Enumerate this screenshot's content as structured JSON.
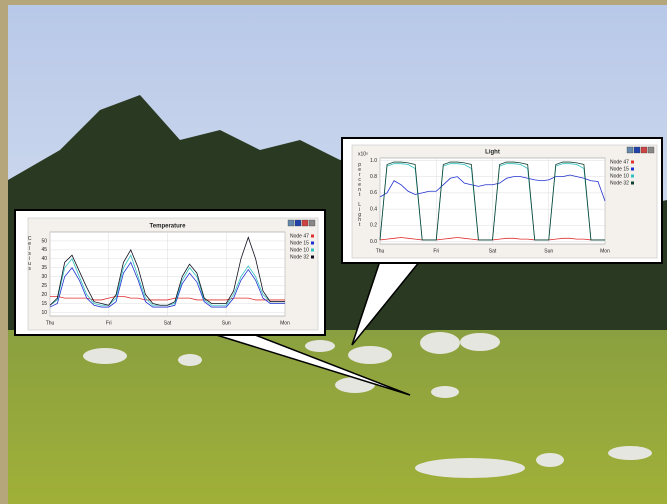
{
  "chart_data": [
    {
      "type": "line",
      "title": "Temperature",
      "y_label": "Celsius",
      "categories": [
        "Thu",
        null,
        null,
        null,
        null,
        null,
        null,
        null,
        "Fri",
        null,
        null,
        null,
        null,
        null,
        null,
        null,
        "Sat",
        null,
        null,
        null,
        null,
        null,
        null,
        null,
        "Sun",
        null,
        null,
        null,
        null,
        null,
        null,
        null,
        "Mon"
      ],
      "ylim": [
        8,
        55
      ],
      "yticks": [
        10,
        15,
        20,
        25,
        30,
        35,
        40,
        45,
        50
      ],
      "grid": true,
      "legend": "right",
      "series": [
        {
          "name": "Node 47",
          "color": "#e03030",
          "values": [
            19,
            19,
            18,
            18,
            18,
            18,
            17,
            17,
            18,
            19,
            19,
            18,
            18,
            17,
            17,
            17,
            17,
            18,
            18,
            18,
            17,
            17,
            17,
            17,
            17,
            18,
            18,
            18,
            17,
            17,
            17,
            17,
            17
          ]
        },
        {
          "name": "Node 15",
          "color": "#2030d0",
          "values": [
            13,
            15,
            30,
            35,
            28,
            18,
            14,
            13,
            13,
            16,
            32,
            38,
            28,
            16,
            13,
            13,
            13,
            14,
            26,
            32,
            27,
            16,
            13,
            13,
            13,
            18,
            28,
            34,
            28,
            18,
            15,
            15,
            15
          ]
        },
        {
          "name": "Node 10",
          "color": "#30c0c0",
          "values": [
            14,
            17,
            35,
            40,
            30,
            20,
            15,
            14,
            14,
            18,
            35,
            42,
            30,
            18,
            14,
            14,
            14,
            15,
            28,
            35,
            30,
            17,
            14,
            14,
            14,
            20,
            30,
            36,
            30,
            20,
            16,
            16,
            16
          ]
        },
        {
          "name": "Node 32",
          "color": "#101020",
          "values": [
            14,
            18,
            38,
            42,
            33,
            24,
            16,
            15,
            14,
            20,
            38,
            45,
            35,
            20,
            15,
            14,
            14,
            16,
            30,
            37,
            32,
            18,
            15,
            15,
            15,
            22,
            40,
            52,
            40,
            22,
            16,
            16,
            16
          ]
        }
      ]
    },
    {
      "type": "line",
      "title": "Light",
      "y_label": "percent Light",
      "axis_multiplier": "x10⁵",
      "categories": [
        "Thu",
        null,
        null,
        null,
        null,
        null,
        null,
        null,
        "Fri",
        null,
        null,
        null,
        null,
        null,
        null,
        null,
        "Sat",
        null,
        null,
        null,
        null,
        null,
        null,
        null,
        "Sun",
        null,
        null,
        null,
        null,
        null,
        null,
        null,
        "Mon"
      ],
      "ylim": [
        -0.03,
        1.03
      ],
      "yticks": [
        {
          "value": 0,
          "label": "0.0"
        },
        {
          "value": 0.2,
          "label": "0.2"
        },
        {
          "value": 0.4,
          "label": "0.4"
        },
        {
          "value": 0.6,
          "label": "0.6"
        },
        {
          "value": 0.8,
          "label": "0.8"
        },
        {
          "value": 1,
          "label": "1.0"
        }
      ],
      "grid": true,
      "legend": "right",
      "series": [
        {
          "name": "Node 47",
          "color": "#e03030",
          "values": [
            0.02,
            0.03,
            0.04,
            0.05,
            0.04,
            0.03,
            0.02,
            0.02,
            0.02,
            0.03,
            0.04,
            0.05,
            0.04,
            0.03,
            0.02,
            0.02,
            0.02,
            0.03,
            0.04,
            0.04,
            0.03,
            0.03,
            0.02,
            0.02,
            0.02,
            0.03,
            0.04,
            0.04,
            0.03,
            0.03,
            0.02,
            0.02,
            0.02
          ]
        },
        {
          "name": "Node 15",
          "color": "#2030d0",
          "values": [
            0.55,
            0.6,
            0.75,
            0.7,
            0.62,
            0.58,
            0.6,
            0.62,
            0.62,
            0.7,
            0.78,
            0.8,
            0.72,
            0.7,
            0.68,
            0.7,
            0.7,
            0.72,
            0.78,
            0.8,
            0.8,
            0.78,
            0.76,
            0.75,
            0.76,
            0.8,
            0.8,
            0.82,
            0.8,
            0.78,
            0.75,
            0.74,
            0.5
          ]
        },
        {
          "name": "Node 10",
          "color": "#30c0c0",
          "values": [
            0.02,
            0.93,
            0.96,
            0.96,
            0.95,
            0.9,
            0.02,
            0.02,
            0.02,
            0.93,
            0.96,
            0.96,
            0.95,
            0.9,
            0.02,
            0.02,
            0.02,
            0.93,
            0.96,
            0.96,
            0.95,
            0.9,
            0.02,
            0.02,
            0.02,
            0.93,
            0.96,
            0.96,
            0.95,
            0.9,
            0.02,
            0.02,
            0.02
          ]
        },
        {
          "name": "Node 32",
          "color": "#104030",
          "values": [
            0.02,
            0.95,
            0.98,
            0.98,
            0.97,
            0.95,
            0.02,
            0.02,
            0.02,
            0.95,
            0.98,
            0.98,
            0.97,
            0.95,
            0.02,
            0.02,
            0.02,
            0.95,
            0.98,
            0.98,
            0.97,
            0.95,
            0.02,
            0.02,
            0.02,
            0.95,
            0.98,
            0.98,
            0.97,
            0.95,
            0.02,
            0.02,
            0.02
          ]
        }
      ]
    }
  ]
}
